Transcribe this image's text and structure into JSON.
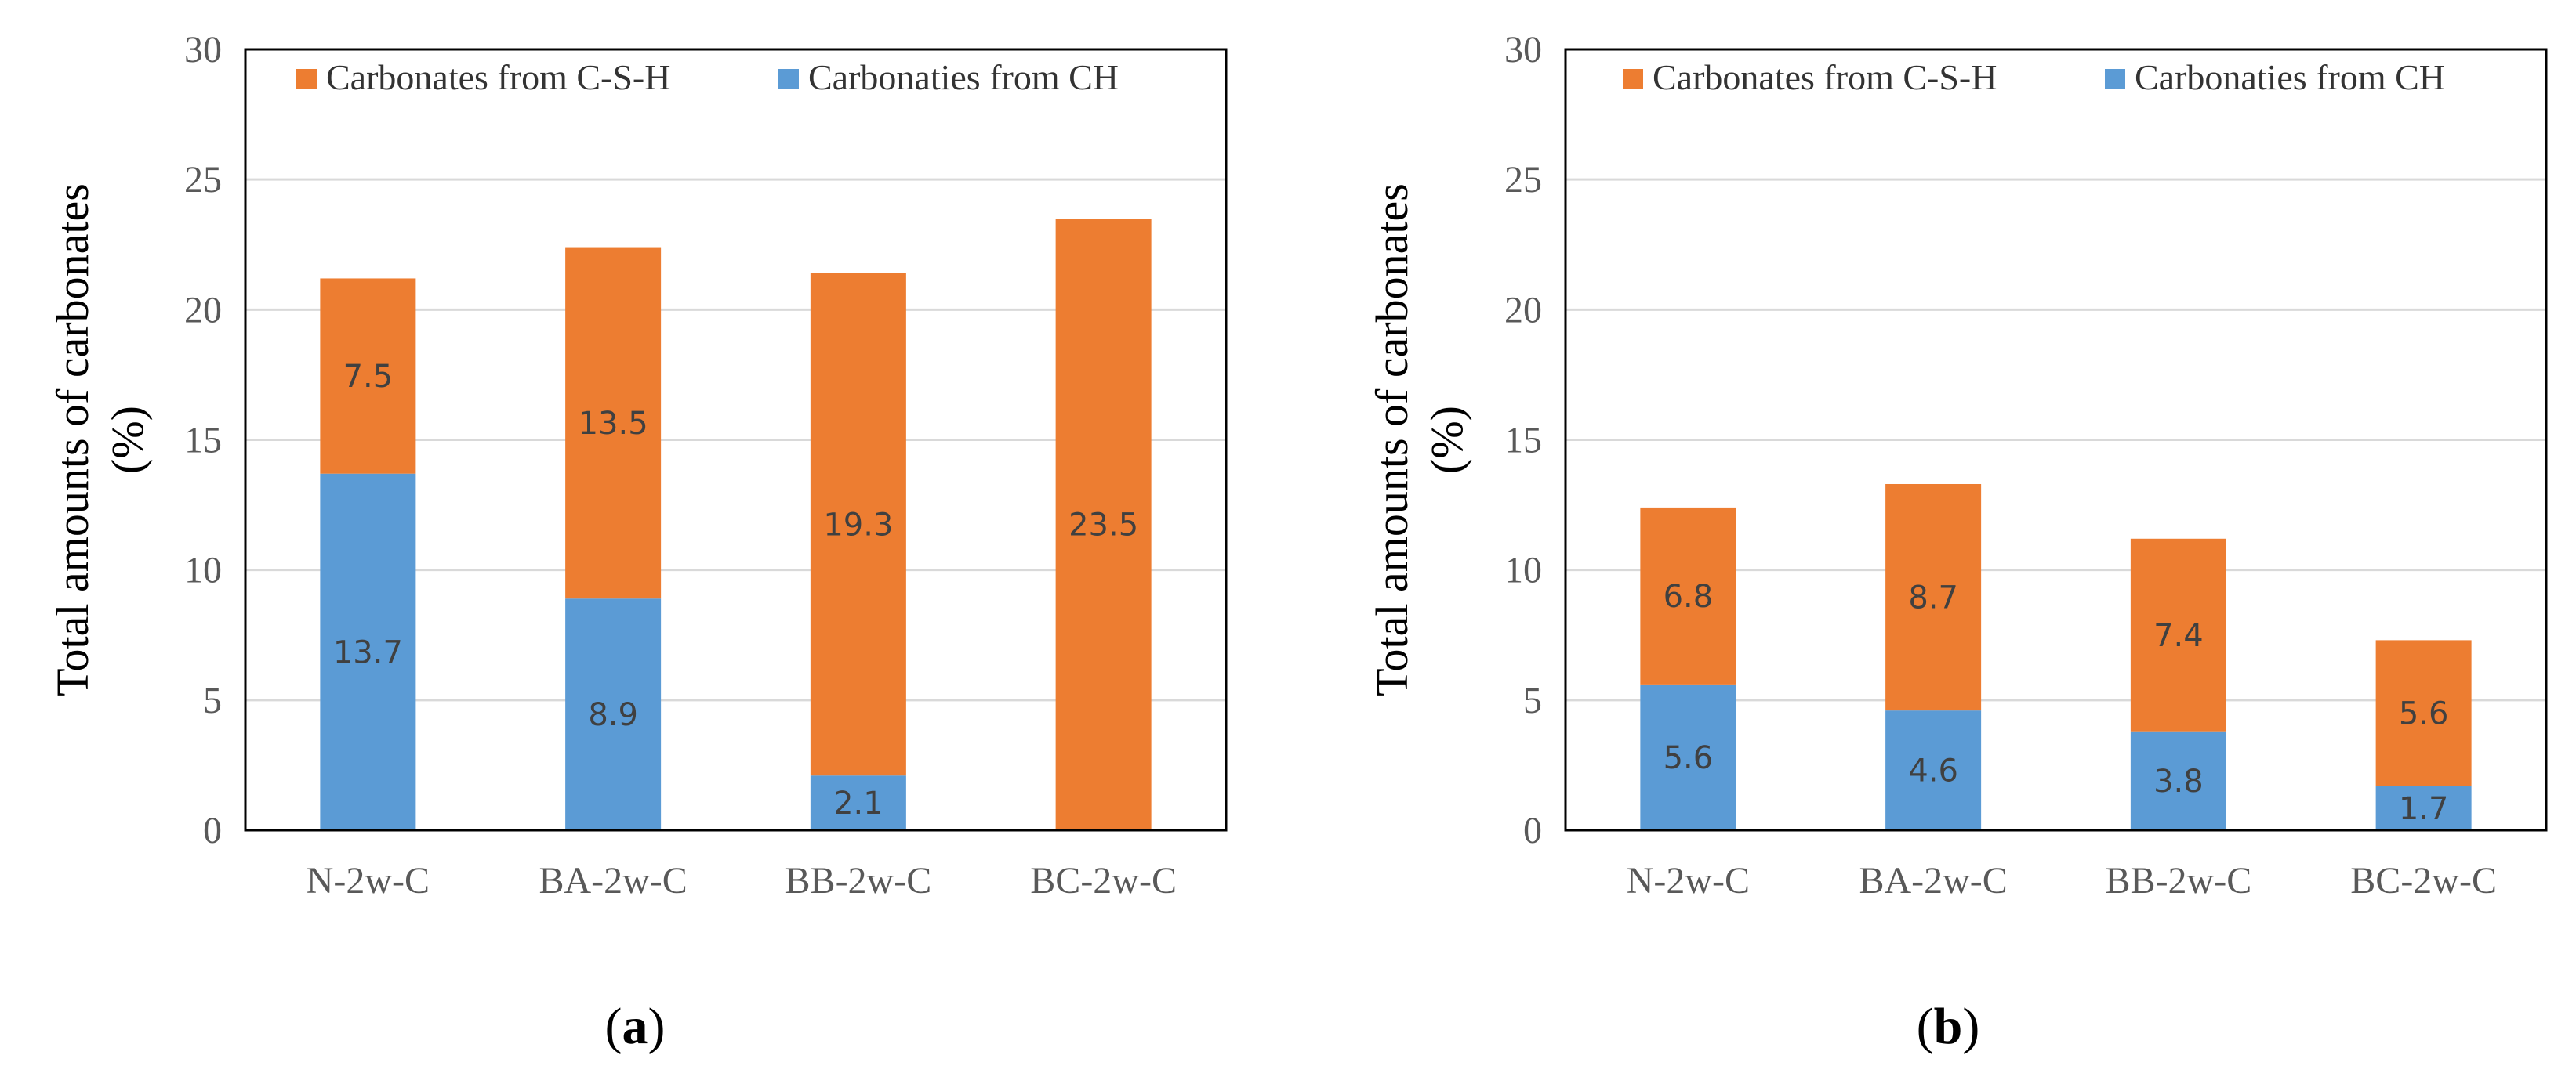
{
  "colors": {
    "csh": "#ED7D31",
    "ch": "#5B9BD5",
    "grid": "#D9D9D9",
    "frame": "#000000"
  },
  "chart_data": [
    {
      "type": "bar",
      "stacked": true,
      "panel": "a",
      "caption": "(a)",
      "caption_letter": "a",
      "categories": [
        "N-2w-C",
        "BA-2w-C",
        "BB-2w-C",
        "BC-2w-C"
      ],
      "series": [
        {
          "name": "Carbonaties from CH",
          "key": "ch",
          "values": [
            13.7,
            8.9,
            2.1,
            0
          ]
        },
        {
          "name": "Carbonates from C-S-H",
          "key": "csh",
          "values": [
            7.5,
            13.5,
            19.3,
            23.5
          ]
        }
      ],
      "labels": {
        "ch": [
          "13.7",
          "8.9",
          "2.1",
          null
        ],
        "csh": [
          "7.5",
          "13.5",
          "19.3",
          "23.5"
        ]
      },
      "ylabel_line1": "Total amounts of carbonates",
      "ylabel_line2": "(%)",
      "ylim": [
        0,
        30
      ],
      "yticks": [
        0,
        5,
        10,
        15,
        20,
        25,
        30
      ],
      "legend_order": [
        "csh",
        "ch"
      ],
      "grid": true
    },
    {
      "type": "bar",
      "stacked": true,
      "panel": "b",
      "caption": "(b)",
      "caption_letter": "b",
      "categories": [
        "N-2w-C",
        "BA-2w-C",
        "BB-2w-C",
        "BC-2w-C"
      ],
      "series": [
        {
          "name": "Carbonaties from CH",
          "key": "ch",
          "values": [
            5.6,
            4.6,
            3.8,
            1.7
          ]
        },
        {
          "name": "Carbonates from C-S-H",
          "key": "csh",
          "values": [
            6.8,
            8.7,
            7.4,
            5.6
          ]
        }
      ],
      "labels": {
        "ch": [
          "5.6",
          "4.6",
          "3.8",
          "1.7"
        ],
        "csh": [
          "6.8",
          "8.7",
          "7.4",
          "5.6"
        ]
      },
      "ylabel_line1": "Total amounts of carbonates",
      "ylabel_line2": "(%)",
      "ylim": [
        0,
        30
      ],
      "yticks": [
        0,
        5,
        10,
        15,
        20,
        25,
        30
      ],
      "legend_order": [
        "csh",
        "ch"
      ],
      "grid": true
    }
  ]
}
